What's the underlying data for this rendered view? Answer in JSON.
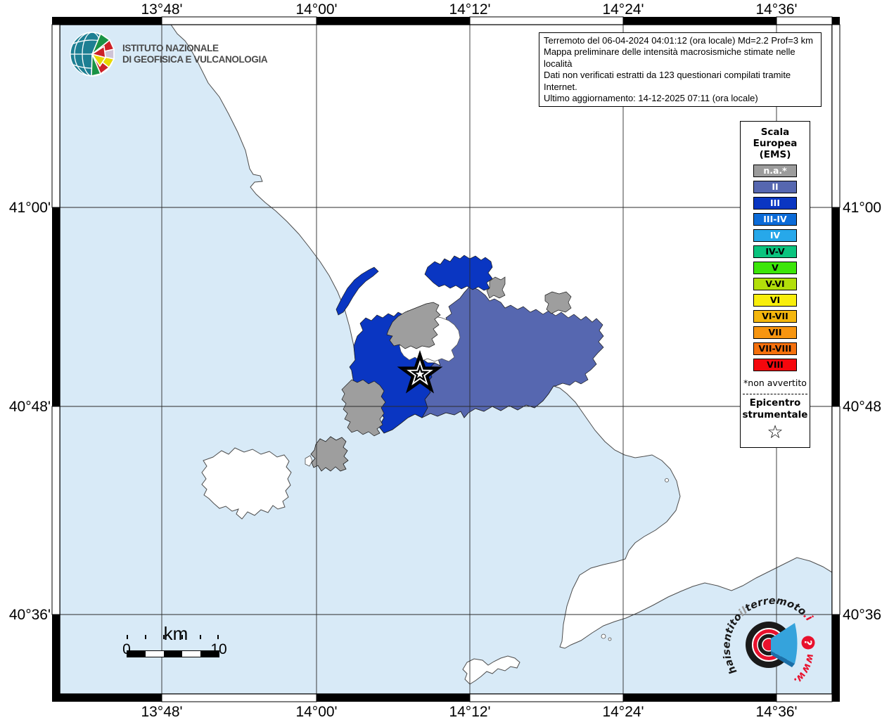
{
  "info_box": {
    "lines": [
      "Terremoto del 06-04-2024 04:01:12 (ora locale) Md=2.2 Prof=3 km",
      "Mappa preliminare delle intensità macrosismiche stimate nelle località",
      "Dati non verificati estratti da 123 questionari compilati tramite Internet.",
      "Ultimo aggiornamento: 14-12-2025 07:11 (ora locale)"
    ]
  },
  "ingv": {
    "line1": "ISTITUTO NAZIONALE",
    "line2": "DI GEOFISICA E VULCANOLOGIA"
  },
  "axes": {
    "top": [
      "13°48'",
      "14°00'",
      "14°12'",
      "14°24'",
      "14°36'"
    ],
    "bottom": [
      "13°48'",
      "14°00'",
      "14°12'",
      "14°24'",
      "14°36'"
    ],
    "left": [
      "41°00'",
      "40°48'",
      "40°36'"
    ],
    "right": [
      "41°00'",
      "40°48'",
      "40°36'"
    ]
  },
  "legend": {
    "title_lines": [
      "Scala",
      "Europea",
      "(EMS)"
    ],
    "items": [
      {
        "label": "n.a.*",
        "color": "#9C9C9C",
        "text": "#FFFFFF"
      },
      {
        "label": "II",
        "color": "#5667B0",
        "text": "#FFFFFF"
      },
      {
        "label": "III",
        "color": "#0A36C2",
        "text": "#FFFFFF"
      },
      {
        "label": "III-IV",
        "color": "#0B6BD8",
        "text": "#FFFFFF"
      },
      {
        "label": "IV",
        "color": "#27A8EA",
        "text": "#FFFFFF"
      },
      {
        "label": "IV-V",
        "color": "#0AC47E",
        "text": "#000000"
      },
      {
        "label": "V",
        "color": "#3CE609",
        "text": "#000000"
      },
      {
        "label": "V-VI",
        "color": "#B2DF0A",
        "text": "#000000"
      },
      {
        "label": "VI",
        "color": "#F8EE0C",
        "text": "#000000"
      },
      {
        "label": "VI-VII",
        "color": "#F4B60D",
        "text": "#000000"
      },
      {
        "label": "VII",
        "color": "#F79510",
        "text": "#000000"
      },
      {
        "label": "VII-VIII",
        "color": "#F4700D",
        "text": "#000000"
      },
      {
        "label": "VIII",
        "color": "#F5070D",
        "text": "#000000"
      }
    ],
    "footnote": "*non avvertito",
    "epicenter_lines": [
      "Epicentro",
      "strumentale"
    ],
    "epicenter_symbol": "☆"
  },
  "scalebar": {
    "unit": "km",
    "zero": "0",
    "ten": "10"
  },
  "watermark": {
    "hai": "hai",
    "sentito": "sentito",
    "il": "il",
    "terremoto": "terremoto",
    "it": ".it",
    "www": "www.",
    "q": "?"
  },
  "colors": {
    "sea": "#D8EAF7",
    "land": "#FFFFFF",
    "coast": "#4D4D4D",
    "grid": "#2B2B2B",
    "na": "#9E9E9E",
    "ii": "#5667B0",
    "iii": "#0A36C2",
    "logo_red": "#E8112D",
    "logo_black": "#1A1A1A",
    "megaphone": "#35A3DC",
    "megaphone_dark": "#1B6FA8"
  }
}
